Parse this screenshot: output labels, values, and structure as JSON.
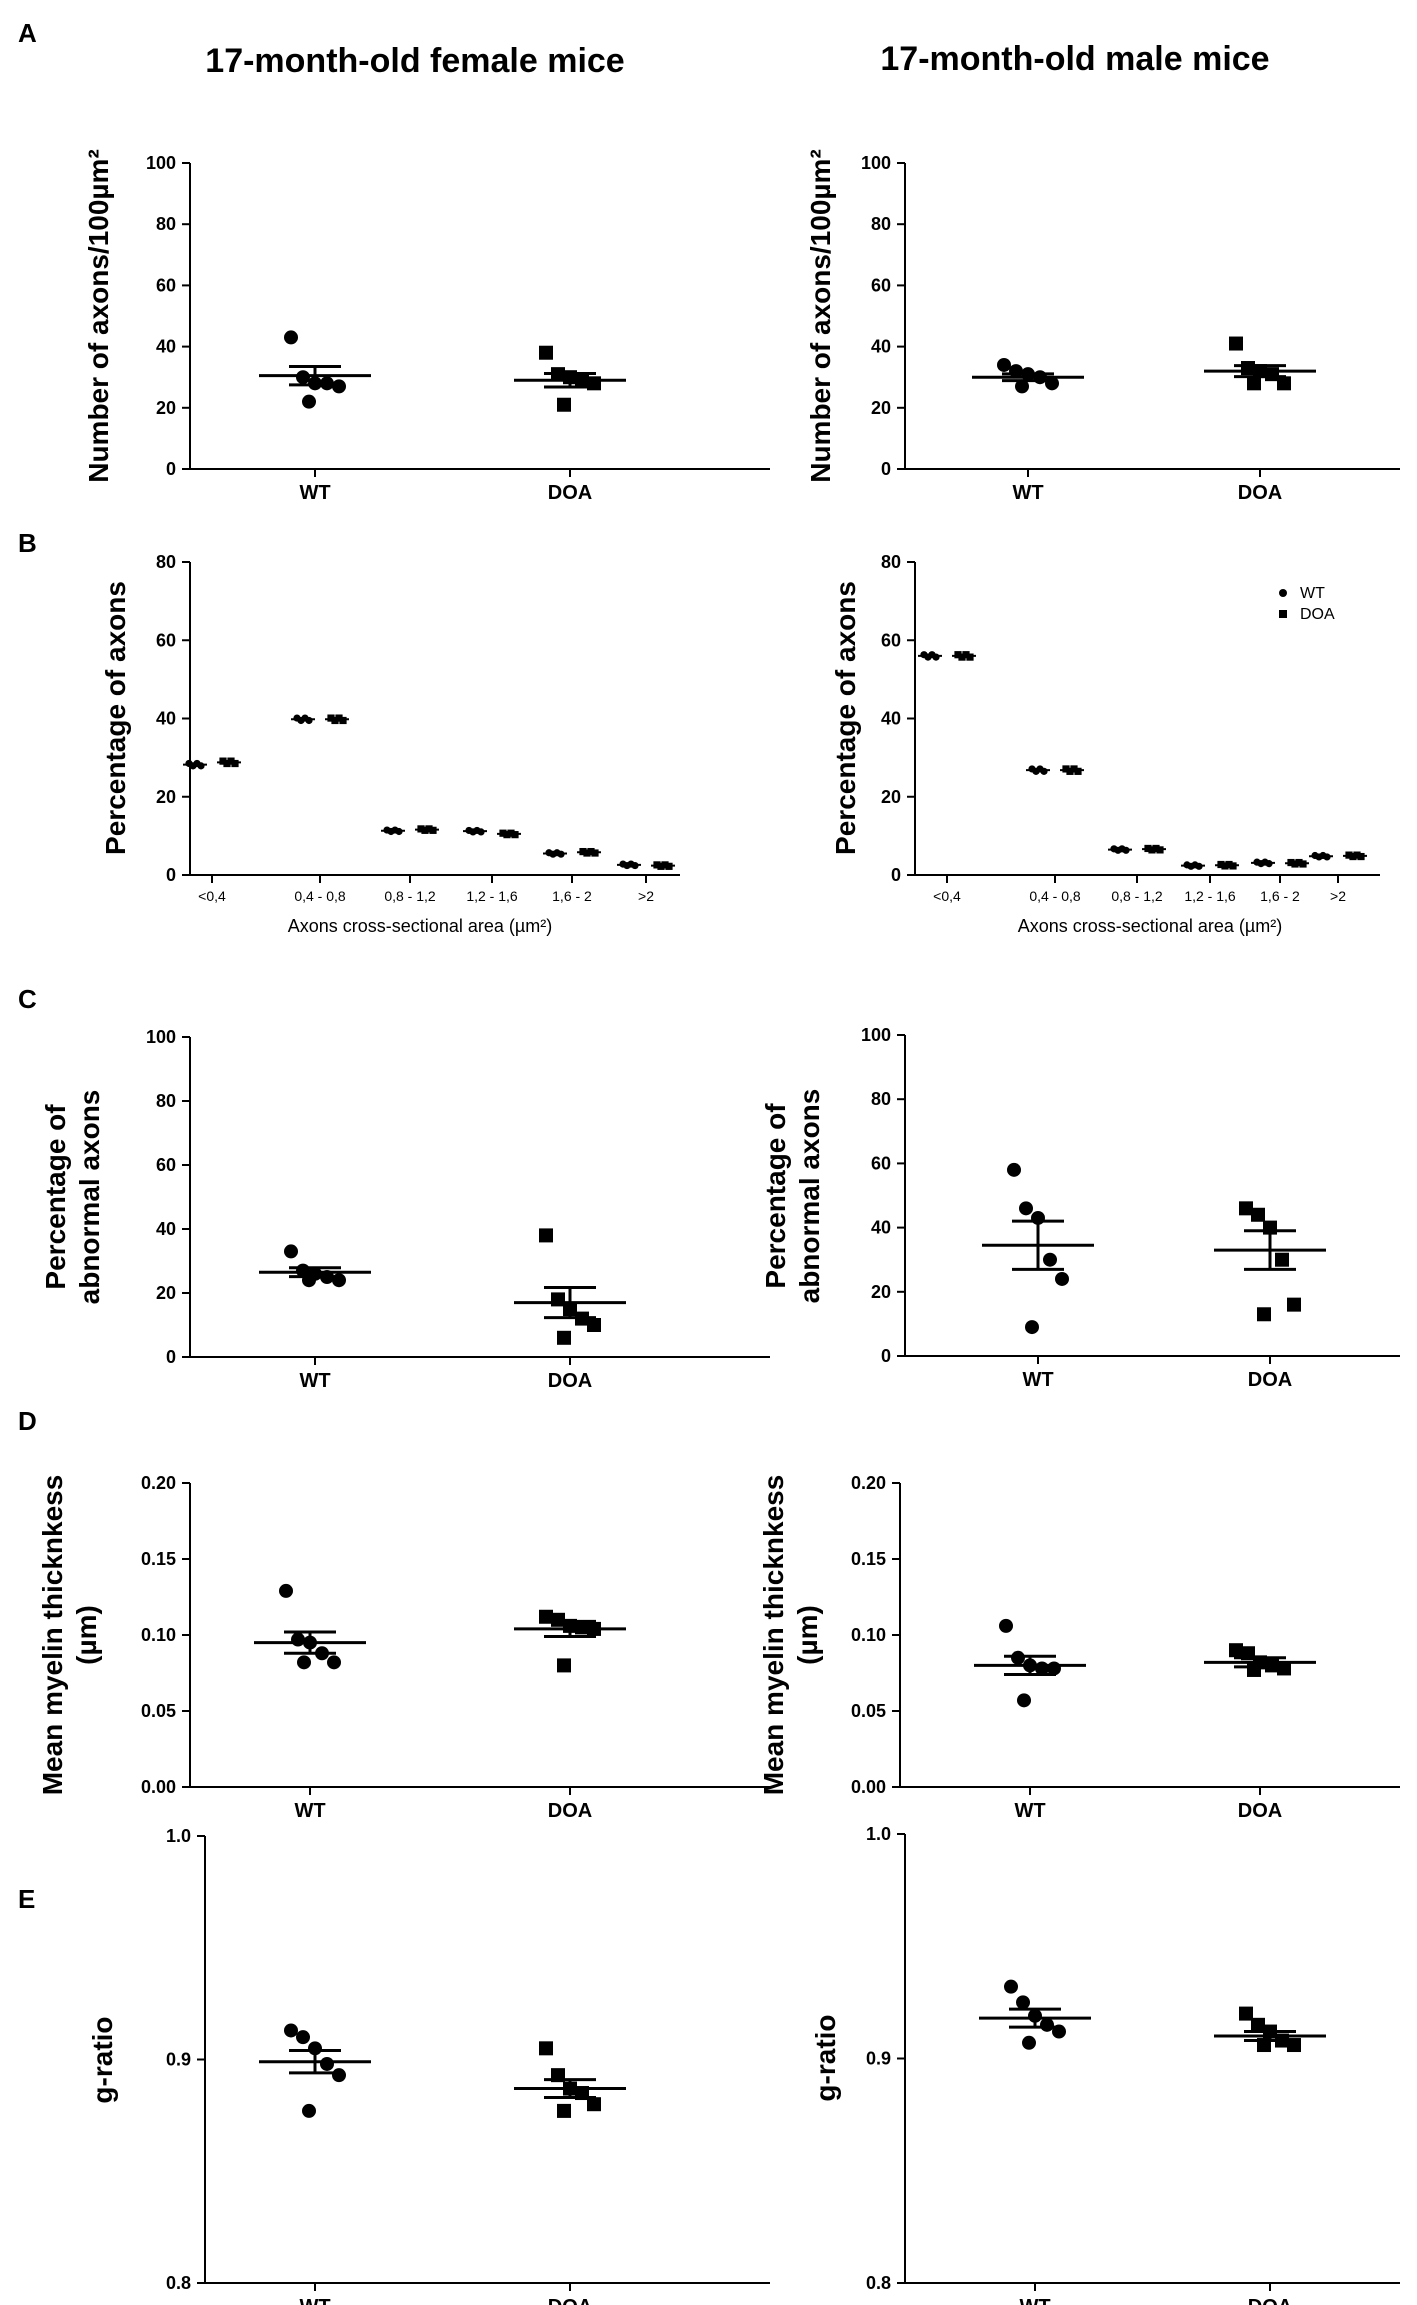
{
  "titles": {
    "left": "17-month-old female mice",
    "right": "17-month-old male mice"
  },
  "panel_letters": [
    "A",
    "B",
    "C",
    "D",
    "E"
  ],
  "chart_data": [
    {
      "id": "A-left",
      "type": "scatter",
      "panel": "A",
      "ylabel": "Number of axons/100µm²",
      "ylim": [
        0,
        100
      ],
      "yticks": [
        0,
        20,
        40,
        60,
        80,
        100
      ],
      "yticklabels": [
        "0",
        "20",
        "40",
        "60",
        "80",
        "100"
      ],
      "categories": [
        "WT",
        "DOA"
      ],
      "series": [
        {
          "name": "WT",
          "marker": "circle",
          "values": [
            43,
            30,
            28,
            28,
            27,
            22
          ],
          "mean": 30.5,
          "sem": 3.0
        },
        {
          "name": "DOA",
          "marker": "square",
          "values": [
            38,
            31,
            30,
            29,
            28,
            21
          ],
          "mean": 29.0,
          "sem": 2.2
        }
      ]
    },
    {
      "id": "A-right",
      "type": "scatter",
      "panel": "A",
      "ylabel": "Number of axons/100µm²",
      "ylim": [
        0,
        100
      ],
      "yticks": [
        0,
        20,
        40,
        60,
        80,
        100
      ],
      "yticklabels": [
        "0",
        "20",
        "40",
        "60",
        "80",
        "100"
      ],
      "categories": [
        "WT",
        "DOA"
      ],
      "series": [
        {
          "name": "WT",
          "marker": "circle",
          "values": [
            34,
            32,
            31,
            30,
            28,
            27
          ],
          "mean": 30.0,
          "sem": 1.1
        },
        {
          "name": "DOA",
          "marker": "square",
          "values": [
            41,
            33,
            32,
            31,
            28,
            28
          ],
          "mean": 32.0,
          "sem": 1.8
        }
      ]
    },
    {
      "id": "B-left",
      "type": "scatter",
      "panel": "B",
      "ylabel": "Percentage of axons",
      "xlabel": "Axons cross-sectional area (µm²)",
      "ylim": [
        0,
        80
      ],
      "yticks": [
        0,
        20,
        40,
        60,
        80
      ],
      "yticklabels": [
        "0",
        "20",
        "40",
        "60",
        "80"
      ],
      "categories": [
        "<0,4",
        "0,4 - 0,8",
        "0,8 - 1,2",
        "1,2 - 1,6",
        "1,6 - 2",
        ">2"
      ],
      "series": [
        {
          "name": "WT",
          "marker": "circle",
          "values": [
            28.2,
            39.8,
            11.3,
            11.2,
            5.5,
            2.6
          ]
        },
        {
          "name": "DOA",
          "marker": "square",
          "values": [
            28.8,
            39.8,
            11.6,
            10.5,
            5.8,
            2.4
          ]
        }
      ]
    },
    {
      "id": "B-right",
      "type": "scatter",
      "panel": "B",
      "ylabel": "Percentage of axons",
      "xlabel": "Axons cross-sectional area (µm²)",
      "ylim": [
        0,
        80
      ],
      "yticks": [
        0,
        20,
        40,
        60,
        80
      ],
      "yticklabels": [
        "0",
        "20",
        "40",
        "60",
        "80"
      ],
      "categories": [
        "<0,4",
        "0,4 - 0,8",
        "0,8 - 1,2",
        "1,2 - 1,6",
        "1,6 - 2",
        ">2"
      ],
      "legend": {
        "position": "top-right",
        "entries": [
          "WT",
          "DOA"
        ]
      },
      "series": [
        {
          "name": "WT",
          "marker": "circle",
          "values": [
            56.0,
            26.8,
            6.5,
            2.4,
            3.1,
            4.8
          ]
        },
        {
          "name": "DOA",
          "marker": "square",
          "values": [
            56.0,
            26.8,
            6.6,
            2.5,
            3.0,
            4.9
          ]
        }
      ]
    },
    {
      "id": "C-left",
      "type": "scatter",
      "panel": "C",
      "ylabel": "Percentage of abnormal axons",
      "ylabel_lines": [
        "Percentage of",
        "abnormal axons"
      ],
      "ylim": [
        0,
        100
      ],
      "yticks": [
        0,
        20,
        40,
        60,
        80,
        100
      ],
      "yticklabels": [
        "0",
        "20",
        "40",
        "60",
        "80",
        "100"
      ],
      "categories": [
        "WT",
        "DOA"
      ],
      "series": [
        {
          "name": "WT",
          "marker": "circle",
          "values": [
            33,
            27,
            26,
            25,
            24,
            24
          ],
          "mean": 26.5,
          "sem": 1.4
        },
        {
          "name": "DOA",
          "marker": "square",
          "values": [
            38,
            18,
            15,
            12,
            10,
            6
          ],
          "mean": 17.0,
          "sem": 4.7
        }
      ]
    },
    {
      "id": "C-right",
      "type": "scatter",
      "panel": "C",
      "ylabel": "Percentage of abnormal axons",
      "ylabel_lines": [
        "Percentage of",
        "abnormal axons"
      ],
      "ylim": [
        0,
        100
      ],
      "yticks": [
        0,
        20,
        40,
        60,
        80,
        100
      ],
      "yticklabels": [
        "0",
        "20",
        "40",
        "60",
        "80",
        "100"
      ],
      "categories": [
        "WT",
        "DOA"
      ],
      "series": [
        {
          "name": "WT",
          "marker": "circle",
          "values": [
            58,
            46,
            43,
            30,
            24,
            9
          ],
          "mean": 34.5,
          "sem": 7.5
        },
        {
          "name": "DOA",
          "marker": "square",
          "values": [
            46,
            44,
            40,
            30,
            16,
            13
          ],
          "mean": 33.0,
          "sem": 6.0
        }
      ]
    },
    {
      "id": "D-left",
      "type": "scatter",
      "panel": "D",
      "ylabel": "Mean myelin thicknkess (µm)",
      "ylabel_lines": [
        "Mean myelin thicknkess",
        "(µm)"
      ],
      "ylim": [
        0,
        0.2
      ],
      "yticks": [
        0,
        0.05,
        0.1,
        0.15,
        0.2
      ],
      "yticklabels": [
        "0.00",
        "0.05",
        "0.10",
        "0.15",
        "0.20"
      ],
      "categories": [
        "WT",
        "DOA"
      ],
      "series": [
        {
          "name": "WT",
          "marker": "circle",
          "values": [
            0.129,
            0.097,
            0.095,
            0.088,
            0.082,
            0.082
          ],
          "mean": 0.095,
          "sem": 0.007
        },
        {
          "name": "DOA",
          "marker": "square",
          "values": [
            0.112,
            0.11,
            0.106,
            0.105,
            0.104,
            0.08
          ],
          "mean": 0.104,
          "sem": 0.005
        }
      ]
    },
    {
      "id": "D-right",
      "type": "scatter",
      "panel": "D",
      "ylabel": "Mean myelin thicknkess (µm)",
      "ylabel_lines": [
        "Mean myelin thicknkess",
        "(µm)"
      ],
      "ylim": [
        0,
        0.2
      ],
      "yticks": [
        0,
        0.05,
        0.1,
        0.15,
        0.2
      ],
      "yticklabels": [
        "0.00",
        "0.05",
        "0.10",
        "0.15",
        "0.20"
      ],
      "categories": [
        "WT",
        "DOA"
      ],
      "series": [
        {
          "name": "WT",
          "marker": "circle",
          "values": [
            0.106,
            0.085,
            0.08,
            0.078,
            0.078,
            0.057
          ],
          "mean": 0.08,
          "sem": 0.006
        },
        {
          "name": "DOA",
          "marker": "square",
          "values": [
            0.09,
            0.088,
            0.082,
            0.08,
            0.078,
            0.077
          ],
          "mean": 0.082,
          "sem": 0.003
        }
      ]
    },
    {
      "id": "E-left",
      "type": "scatter",
      "panel": "E",
      "ylabel": "g-ratio",
      "ylim": [
        0.8,
        1.0
      ],
      "yticks": [
        0.8,
        0.9,
        1.0
      ],
      "yticklabels": [
        "0.8",
        "0.9",
        "1.0"
      ],
      "categories": [
        "WT",
        "DOA"
      ],
      "series": [
        {
          "name": "WT",
          "marker": "circle",
          "values": [
            0.913,
            0.91,
            0.905,
            0.898,
            0.893,
            0.877
          ],
          "mean": 0.899,
          "sem": 0.005
        },
        {
          "name": "DOA",
          "marker": "square",
          "values": [
            0.905,
            0.893,
            0.887,
            0.885,
            0.88,
            0.877
          ],
          "mean": 0.887,
          "sem": 0.004
        }
      ]
    },
    {
      "id": "E-right",
      "type": "scatter",
      "panel": "E",
      "ylabel": "g-ratio",
      "ylim": [
        0.8,
        1.0
      ],
      "yticks": [
        0.8,
        0.9,
        1.0
      ],
      "yticklabels": [
        "0.8",
        "0.9",
        "1.0"
      ],
      "categories": [
        "WT",
        "DOA"
      ],
      "series": [
        {
          "name": "WT",
          "marker": "circle",
          "values": [
            0.932,
            0.925,
            0.919,
            0.915,
            0.912,
            0.907
          ],
          "mean": 0.918,
          "sem": 0.004
        },
        {
          "name": "DOA",
          "marker": "square",
          "values": [
            0.92,
            0.915,
            0.912,
            0.908,
            0.906,
            0.906
          ],
          "mean": 0.91,
          "sem": 0.002
        }
      ]
    }
  ]
}
